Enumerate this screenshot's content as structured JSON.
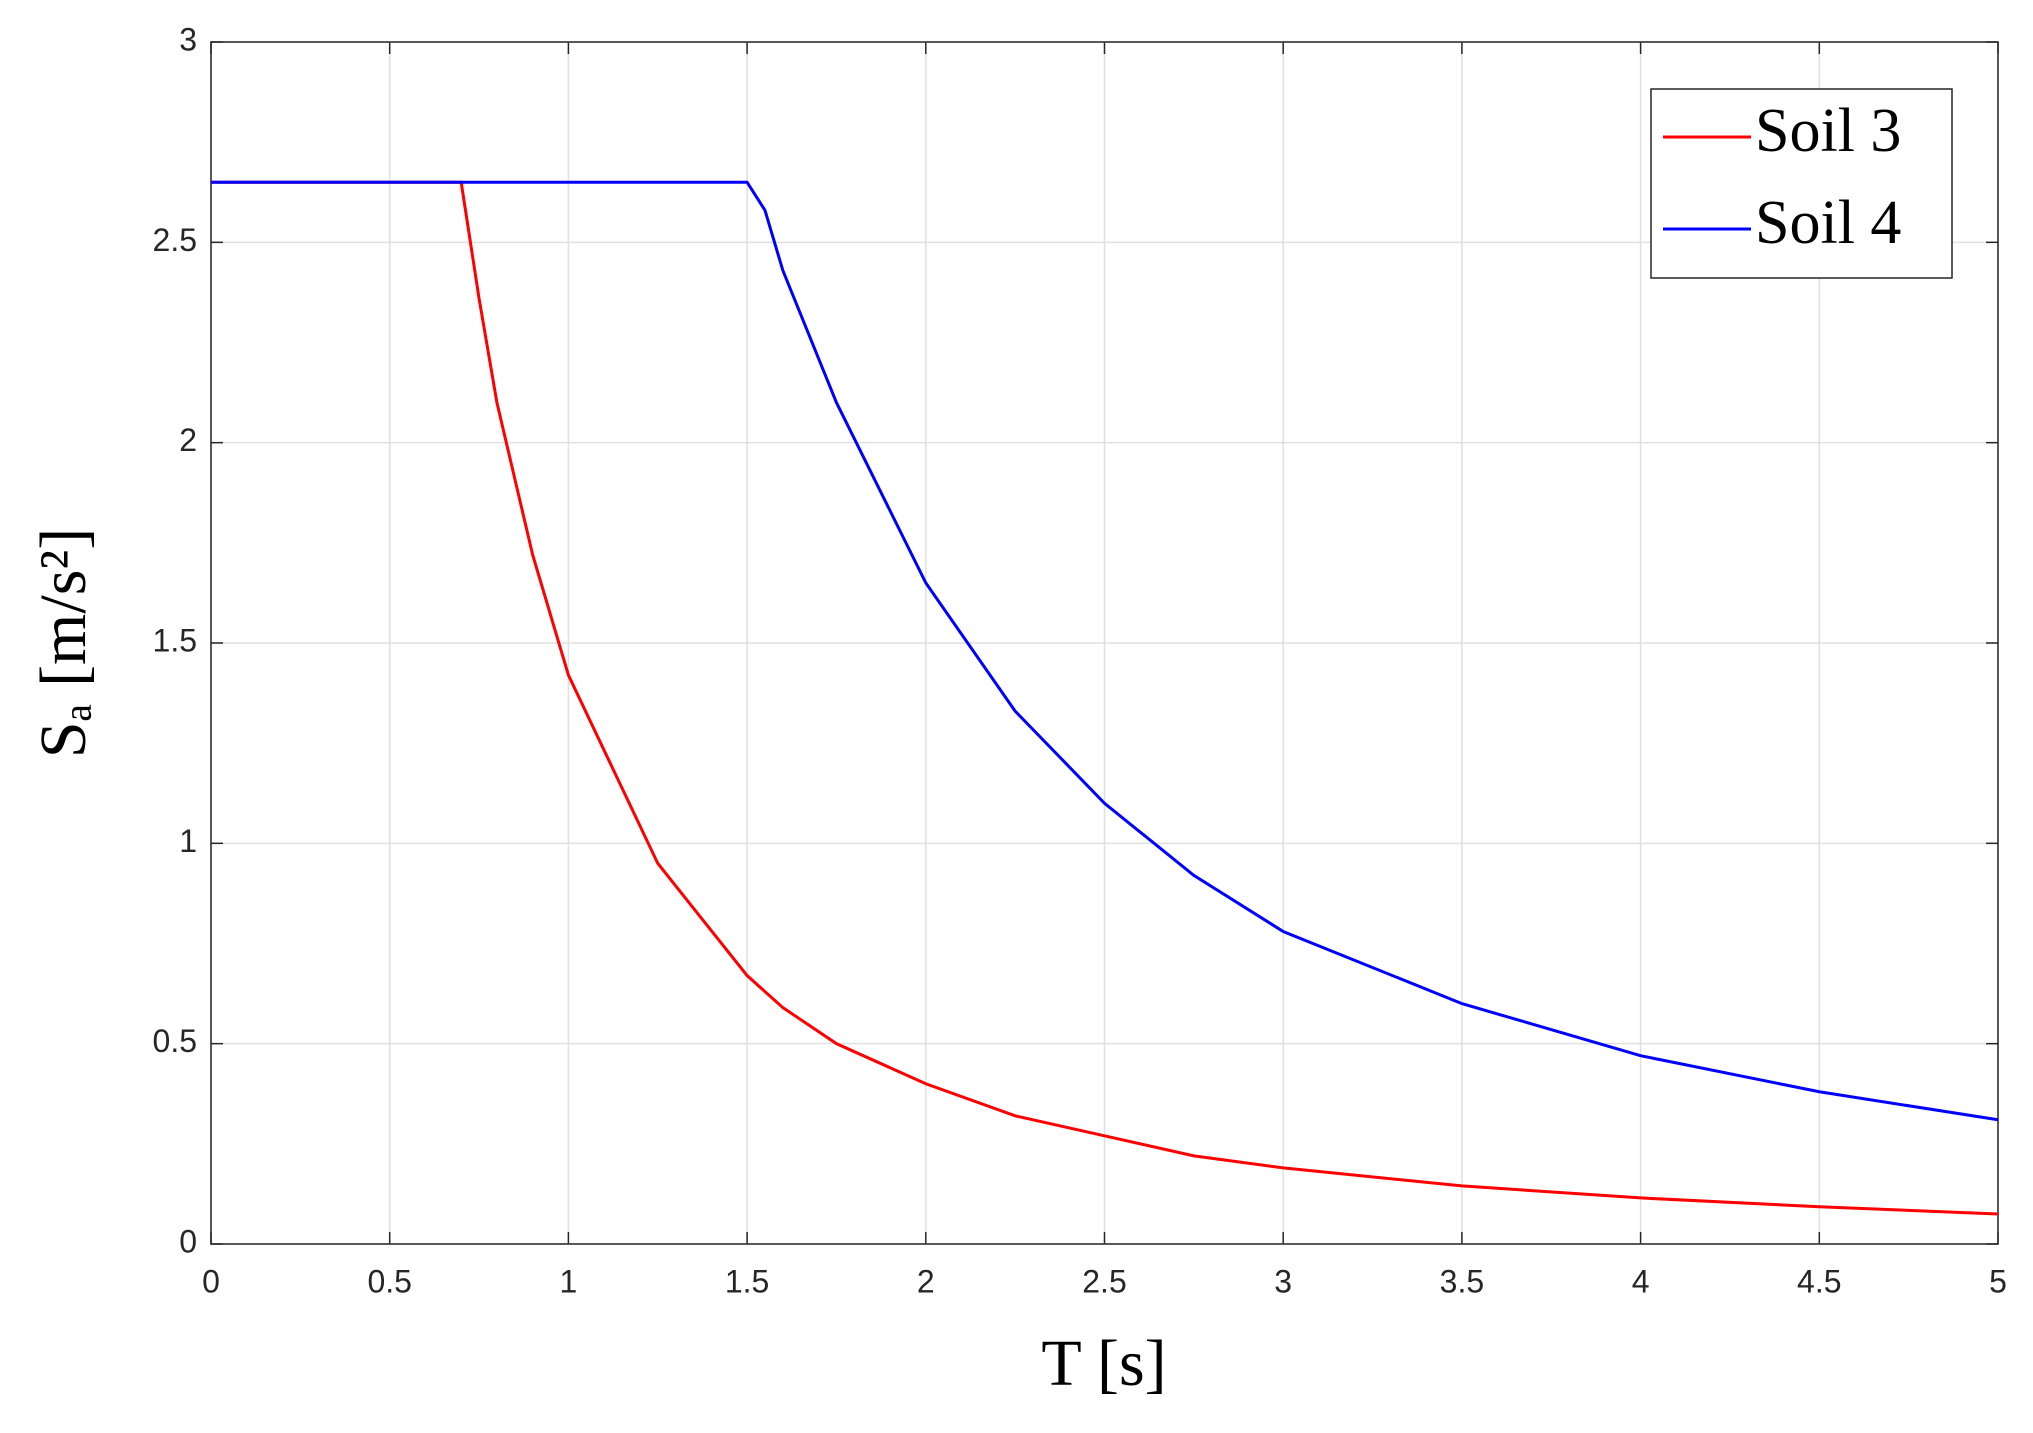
{
  "chart_data": {
    "type": "line",
    "x_label": "T [s]",
    "y_label": "Sₐ [m/s²]",
    "x": [
      0,
      0.5,
      0.7,
      0.75,
      0.8,
      0.9,
      1,
      1.25,
      1.5,
      1.55,
      1.6,
      1.75,
      2,
      2.25,
      2.5,
      2.75,
      3,
      3.5,
      4,
      4.5,
      5
    ],
    "series": [
      {
        "name": "Soil 3",
        "color": "#ff0000",
        "values": [
          2.65,
          2.65,
          2.65,
          2.36,
          2.1,
          1.72,
          1.42,
          0.95,
          0.67,
          0.63,
          0.59,
          0.5,
          0.4,
          0.32,
          0.27,
          0.22,
          0.19,
          0.145,
          0.115,
          0.093,
          0.075
        ]
      },
      {
        "name": "Soil 4",
        "color": "#0000ff",
        "values": [
          2.65,
          2.65,
          2.65,
          2.65,
          2.65,
          2.65,
          2.65,
          2.65,
          2.65,
          2.58,
          2.43,
          2.1,
          1.65,
          1.33,
          1.1,
          0.92,
          0.78,
          0.6,
          0.47,
          0.38,
          0.31
        ]
      }
    ],
    "xlim": [
      0,
      5
    ],
    "xticks": [
      0,
      0.5,
      1,
      1.5,
      2,
      2.5,
      3,
      3.5,
      4,
      4.5,
      5
    ],
    "ylim": [
      0,
      3
    ],
    "yticks": [
      0,
      0.5,
      1,
      1.5,
      2,
      2.5,
      3
    ],
    "grid": true,
    "legend": "top-right"
  }
}
